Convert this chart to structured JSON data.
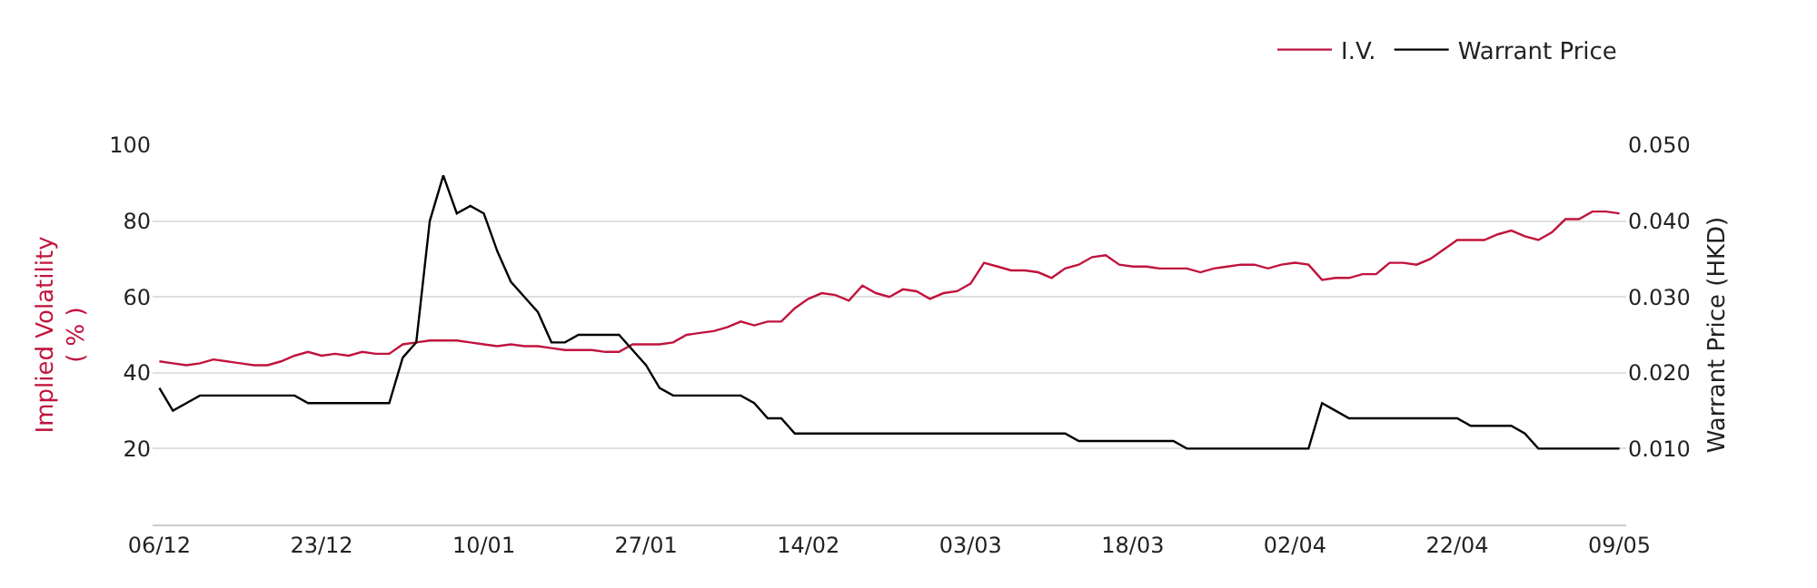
{
  "chart_data": {
    "type": "line",
    "categories": [
      "06/12",
      null,
      null,
      null,
      null,
      null,
      null,
      null,
      null,
      null,
      null,
      null,
      "23/12",
      null,
      null,
      null,
      null,
      null,
      null,
      null,
      null,
      null,
      null,
      null,
      "10/01",
      null,
      null,
      null,
      null,
      null,
      null,
      null,
      null,
      null,
      null,
      null,
      "27/01",
      null,
      null,
      null,
      null,
      null,
      null,
      null,
      null,
      null,
      null,
      null,
      "14/02",
      null,
      null,
      null,
      null,
      null,
      null,
      null,
      null,
      null,
      null,
      null,
      "03/03",
      null,
      null,
      null,
      null,
      null,
      null,
      null,
      null,
      null,
      null,
      null,
      "18/03",
      null,
      null,
      null,
      null,
      null,
      null,
      null,
      null,
      null,
      null,
      null,
      "02/04",
      null,
      null,
      null,
      null,
      null,
      null,
      null,
      null,
      null,
      null,
      null,
      "22/04",
      null,
      null,
      null,
      null,
      null,
      null,
      null,
      null,
      null,
      null,
      null,
      "09/05"
    ],
    "series": [
      {
        "name": "I.V.",
        "color": "#c0143c",
        "values": [
          43,
          42.5,
          42,
          42.5,
          43.5,
          43,
          42.5,
          42,
          42,
          43,
          44.5,
          45.5,
          44.5,
          45,
          44.5,
          45.5,
          45,
          45,
          47.5,
          48,
          48.5,
          48.5,
          48.5,
          48,
          47.5,
          47,
          47.5,
          47,
          47,
          46.5,
          46,
          46,
          46,
          45.5,
          45.5,
          47.5,
          47.5,
          47.5,
          48,
          50,
          50.5,
          51,
          52,
          53.5,
          52.5,
          53.5,
          53.5,
          57,
          59.5,
          61,
          60.5,
          59,
          63,
          61,
          60,
          62,
          61.5,
          59.5,
          61,
          61.5,
          63.5,
          69,
          68,
          67,
          67,
          66.5,
          65,
          67.5,
          68.5,
          70.5,
          71,
          68.5,
          68,
          68,
          67.5,
          67.5,
          67.5,
          66.5,
          67.5,
          68,
          68.5,
          68.5,
          67.5,
          68.5,
          69,
          68.5,
          64.5,
          65,
          65,
          66,
          66,
          69,
          69,
          68.5,
          70,
          72.5,
          75,
          75,
          75,
          76.5,
          77.5,
          76,
          75,
          77,
          80.5,
          80.5,
          82.5,
          82.5,
          82
        ]
      },
      {
        "name": "Warrant Price",
        "color": "#000000",
        "axis": "y2",
        "values": [
          0.018,
          0.015,
          0.016,
          0.017,
          0.017,
          0.017,
          0.017,
          0.017,
          0.017,
          0.017,
          0.017,
          0.016,
          0.016,
          0.016,
          0.016,
          0.016,
          0.016,
          0.016,
          0.022,
          0.024,
          0.04,
          0.046,
          0.041,
          0.042,
          0.041,
          0.036,
          0.032,
          0.03,
          0.028,
          0.024,
          0.024,
          0.025,
          0.025,
          0.025,
          0.025,
          0.023,
          0.021,
          0.018,
          0.017,
          0.017,
          0.017,
          0.017,
          0.017,
          0.017,
          0.016,
          0.014,
          0.014,
          0.012,
          0.012,
          0.012,
          0.012,
          0.012,
          0.012,
          0.012,
          0.012,
          0.012,
          0.012,
          0.012,
          0.012,
          0.012,
          0.012,
          0.012,
          0.012,
          0.012,
          0.012,
          0.012,
          0.012,
          0.012,
          0.011,
          0.011,
          0.011,
          0.011,
          0.011,
          0.011,
          0.011,
          0.011,
          0.01,
          0.01,
          0.01,
          0.01,
          0.01,
          0.01,
          0.01,
          0.01,
          0.01,
          0.01,
          0.016,
          0.015,
          0.014,
          0.014,
          0.014,
          0.014,
          0.014,
          0.014,
          0.014,
          0.014,
          0.014,
          0.013,
          0.013,
          0.013,
          0.013,
          0.012,
          0.01,
          0.01,
          0.01,
          0.01,
          0.01,
          0.01,
          0.01
        ]
      }
    ],
    "ylabel": "Implied Volatility\n( % )",
    "y2label": "Warrant Price (HKD)",
    "ylim": [
      0,
      100
    ],
    "yticks": [
      {
        "value": 0,
        "label": null
      },
      20,
      40,
      60,
      80,
      100
    ],
    "y2lim": [
      0,
      0.05
    ],
    "y2ticks": [
      {
        "value": 0,
        "label": null
      },
      {
        "value": 0.01,
        "label": "0.010"
      },
      {
        "value": 0.02,
        "label": "0.020"
      },
      {
        "value": 0.03,
        "label": "0.030"
      },
      {
        "value": 0.04,
        "label": "0.040"
      },
      {
        "value": 0.05,
        "label": "0.050"
      }
    ],
    "grid": "y",
    "legend": "top right",
    "marker": "none",
    "line_style": "solid"
  }
}
